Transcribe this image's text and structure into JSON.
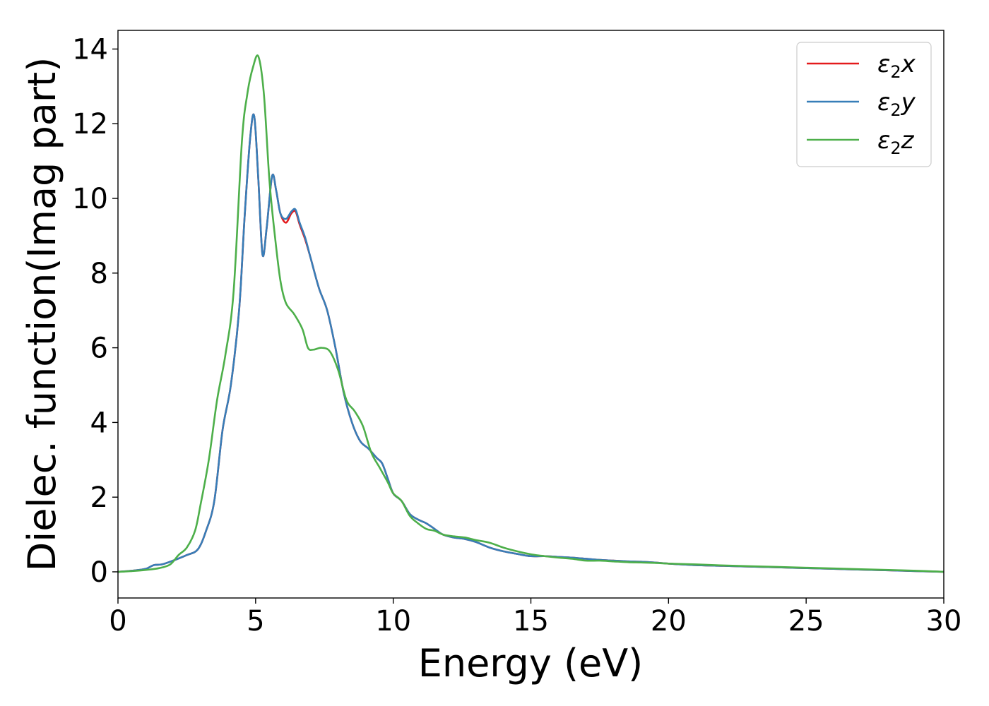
{
  "chart_data": {
    "type": "line",
    "xlabel": "Energy (eV)",
    "ylabel": "Dielec. function(Imag part)",
    "xlim": [
      0,
      30
    ],
    "ylim": [
      -0.7,
      14.5
    ],
    "xticks": [
      0,
      5,
      10,
      15,
      20,
      25,
      30
    ],
    "yticks": [
      0,
      2,
      4,
      6,
      8,
      10,
      12,
      14
    ],
    "grid": false,
    "legend_position": "upper right",
    "series": [
      {
        "name": "ε₂x",
        "legend": {
          "base": "ε",
          "sub": "2",
          "var": "x"
        },
        "color": "#e41a1c",
        "x": [
          0,
          0.5,
          1.0,
          1.3,
          1.6,
          2.0,
          2.5,
          2.9,
          3.2,
          3.5,
          3.8,
          4.1,
          4.4,
          4.6,
          4.8,
          4.95,
          5.1,
          5.25,
          5.4,
          5.6,
          5.75,
          5.9,
          6.1,
          6.3,
          6.45,
          6.6,
          6.8,
          7.0,
          7.3,
          7.6,
          7.9,
          8.2,
          8.5,
          8.8,
          9.1,
          9.4,
          9.6,
          9.8,
          10.0,
          10.3,
          10.6,
          10.9,
          11.2,
          11.5,
          11.8,
          12.2,
          12.6,
          13.0,
          13.5,
          14.0,
          14.5,
          15.0,
          15.5,
          16.0,
          16.5,
          17.0,
          17.5,
          18.0,
          18.5,
          19.0,
          19.5,
          20.0,
          21.0,
          22.0,
          23.0,
          24.0,
          25.0,
          26.0,
          27.0,
          28.0,
          29.0,
          30.0
        ],
        "y": [
          0.0,
          0.03,
          0.08,
          0.18,
          0.2,
          0.3,
          0.45,
          0.6,
          1.1,
          1.9,
          3.8,
          5.0,
          7.0,
          9.5,
          11.6,
          12.2,
          10.5,
          8.5,
          9.2,
          10.6,
          10.2,
          9.6,
          9.35,
          9.6,
          9.65,
          9.3,
          8.9,
          8.4,
          7.6,
          7.0,
          6.0,
          4.8,
          4.0,
          3.5,
          3.3,
          3.05,
          2.9,
          2.5,
          2.1,
          1.9,
          1.55,
          1.4,
          1.3,
          1.15,
          1.0,
          0.92,
          0.88,
          0.8,
          0.65,
          0.55,
          0.48,
          0.42,
          0.42,
          0.4,
          0.38,
          0.35,
          0.32,
          0.3,
          0.28,
          0.27,
          0.25,
          0.22,
          0.18,
          0.16,
          0.14,
          0.12,
          0.1,
          0.08,
          0.06,
          0.04,
          0.02,
          0.0
        ]
      },
      {
        "name": "ε₂y",
        "legend": {
          "base": "ε",
          "sub": "2",
          "var": "y"
        },
        "color": "#377eb8",
        "x": [
          0,
          0.5,
          1.0,
          1.3,
          1.6,
          2.0,
          2.5,
          2.9,
          3.2,
          3.5,
          3.8,
          4.1,
          4.4,
          4.6,
          4.8,
          4.95,
          5.1,
          5.25,
          5.4,
          5.6,
          5.75,
          5.9,
          6.1,
          6.3,
          6.45,
          6.6,
          6.8,
          7.0,
          7.3,
          7.6,
          7.9,
          8.2,
          8.5,
          8.8,
          9.1,
          9.4,
          9.6,
          9.8,
          10.0,
          10.3,
          10.6,
          10.9,
          11.2,
          11.5,
          11.8,
          12.2,
          12.6,
          13.0,
          13.5,
          14.0,
          14.5,
          15.0,
          15.5,
          16.0,
          16.5,
          17.0,
          17.5,
          18.0,
          18.5,
          19.0,
          19.5,
          20.0,
          21.0,
          22.0,
          23.0,
          24.0,
          25.0,
          26.0,
          27.0,
          28.0,
          29.0,
          30.0
        ],
        "y": [
          0.0,
          0.03,
          0.08,
          0.18,
          0.2,
          0.3,
          0.45,
          0.6,
          1.1,
          1.9,
          3.8,
          5.0,
          7.0,
          9.5,
          11.6,
          12.2,
          10.5,
          8.5,
          9.2,
          10.6,
          10.2,
          9.6,
          9.45,
          9.65,
          9.7,
          9.35,
          8.95,
          8.4,
          7.6,
          7.0,
          6.0,
          4.8,
          4.0,
          3.5,
          3.3,
          3.05,
          2.9,
          2.5,
          2.1,
          1.9,
          1.55,
          1.4,
          1.3,
          1.15,
          1.0,
          0.92,
          0.88,
          0.8,
          0.65,
          0.55,
          0.48,
          0.42,
          0.42,
          0.4,
          0.38,
          0.35,
          0.32,
          0.3,
          0.28,
          0.27,
          0.25,
          0.22,
          0.18,
          0.16,
          0.14,
          0.12,
          0.1,
          0.08,
          0.06,
          0.04,
          0.02,
          0.0
        ]
      },
      {
        "name": "ε₂z",
        "legend": {
          "base": "ε",
          "sub": "2",
          "var": "z"
        },
        "color": "#4daf4a",
        "x": [
          0,
          0.5,
          1.0,
          1.5,
          1.9,
          2.2,
          2.5,
          2.8,
          3.0,
          3.3,
          3.6,
          3.9,
          4.2,
          4.5,
          4.7,
          4.9,
          5.1,
          5.3,
          5.5,
          5.7,
          5.9,
          6.1,
          6.4,
          6.7,
          6.9,
          7.1,
          7.4,
          7.7,
          8.0,
          8.3,
          8.6,
          8.9,
          9.2,
          9.5,
          9.8,
          10.0,
          10.3,
          10.6,
          10.9,
          11.2,
          11.5,
          11.8,
          12.2,
          12.6,
          13.0,
          13.5,
          14.0,
          14.5,
          15.0,
          15.5,
          16.0,
          16.5,
          17.0,
          17.5,
          18.0,
          18.5,
          19.0,
          19.5,
          20.0,
          21.0,
          22.0,
          23.0,
          24.0,
          25.0,
          26.0,
          27.0,
          28.0,
          29.0,
          30.0
        ],
        "y": [
          0.0,
          0.02,
          0.05,
          0.1,
          0.2,
          0.45,
          0.65,
          1.1,
          1.8,
          3.0,
          4.6,
          5.8,
          7.5,
          11.5,
          12.8,
          13.5,
          13.8,
          12.8,
          10.5,
          9.0,
          7.8,
          7.2,
          6.9,
          6.5,
          6.0,
          5.95,
          6.0,
          5.9,
          5.4,
          4.6,
          4.3,
          3.9,
          3.2,
          2.8,
          2.4,
          2.1,
          1.9,
          1.5,
          1.3,
          1.15,
          1.1,
          1.0,
          0.95,
          0.92,
          0.85,
          0.78,
          0.65,
          0.55,
          0.47,
          0.42,
          0.38,
          0.35,
          0.3,
          0.3,
          0.28,
          0.26,
          0.25,
          0.24,
          0.22,
          0.2,
          0.17,
          0.15,
          0.13,
          0.11,
          0.09,
          0.07,
          0.05,
          0.03,
          0.0
        ]
      }
    ]
  }
}
